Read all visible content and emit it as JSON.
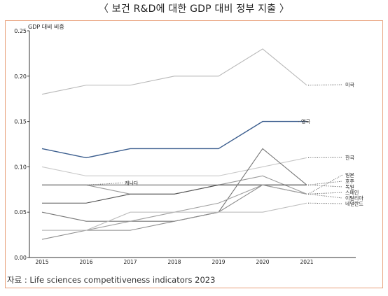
{
  "page_title": "〈 보건 R&D에 대한 GDP 대비 정부 지출 〉",
  "source": "자료 : Life sciences competitiveness indicators 2023",
  "chart_data": {
    "type": "line",
    "ylabel": "GDP 대비 비중",
    "x": [
      "2015",
      "2016",
      "2017",
      "2018",
      "2019",
      "2020",
      "2021"
    ],
    "yticks": [
      "0.00",
      "0.05",
      "0.10",
      "0.15",
      "0.20",
      "0.25"
    ],
    "ylim": [
      0,
      0.25
    ],
    "grid": false,
    "series": [
      {
        "name": "미국",
        "color": "#b8b8b8",
        "values": [
          0.18,
          0.19,
          0.19,
          0.2,
          0.2,
          0.23,
          0.19
        ]
      },
      {
        "name": "영국",
        "color": "#3d5f8f",
        "values": [
          0.12,
          0.11,
          0.12,
          0.12,
          0.12,
          0.15,
          0.15
        ]
      },
      {
        "name": "한국",
        "color": "#c8c8c8",
        "values": [
          0.1,
          0.09,
          0.09,
          0.09,
          0.09,
          0.1,
          0.11
        ]
      },
      {
        "name": "일본",
        "color": "#9a9a9a",
        "values": [
          0.08,
          0.08,
          0.07,
          0.07,
          0.08,
          0.09,
          0.07
        ]
      },
      {
        "name": "캐나다",
        "color": "#6a6a6a",
        "values": [
          0.08,
          0.08,
          0.08,
          0.08,
          0.08,
          0.08,
          0.08
        ]
      },
      {
        "name": "호주",
        "color": "#555555",
        "values": [
          0.06,
          0.06,
          0.07,
          0.07,
          0.08,
          0.08,
          0.08
        ]
      },
      {
        "name": "독일",
        "color": "#777777",
        "values": [
          0.05,
          0.04,
          0.04,
          0.04,
          0.05,
          0.12,
          0.08
        ]
      },
      {
        "name": "스페인",
        "color": "#8c8c8c",
        "values": [
          0.02,
          0.03,
          0.03,
          0.04,
          0.05,
          0.08,
          0.07
        ]
      },
      {
        "name": "이탈리아",
        "color": "#a0a0a0",
        "values": [
          0.03,
          0.03,
          0.04,
          0.05,
          0.06,
          0.08,
          0.07
        ]
      },
      {
        "name": "네덜란드",
        "color": "#bdbdbd",
        "values": [
          0.03,
          0.03,
          0.05,
          0.05,
          0.05,
          0.05,
          0.06
        ]
      }
    ]
  }
}
